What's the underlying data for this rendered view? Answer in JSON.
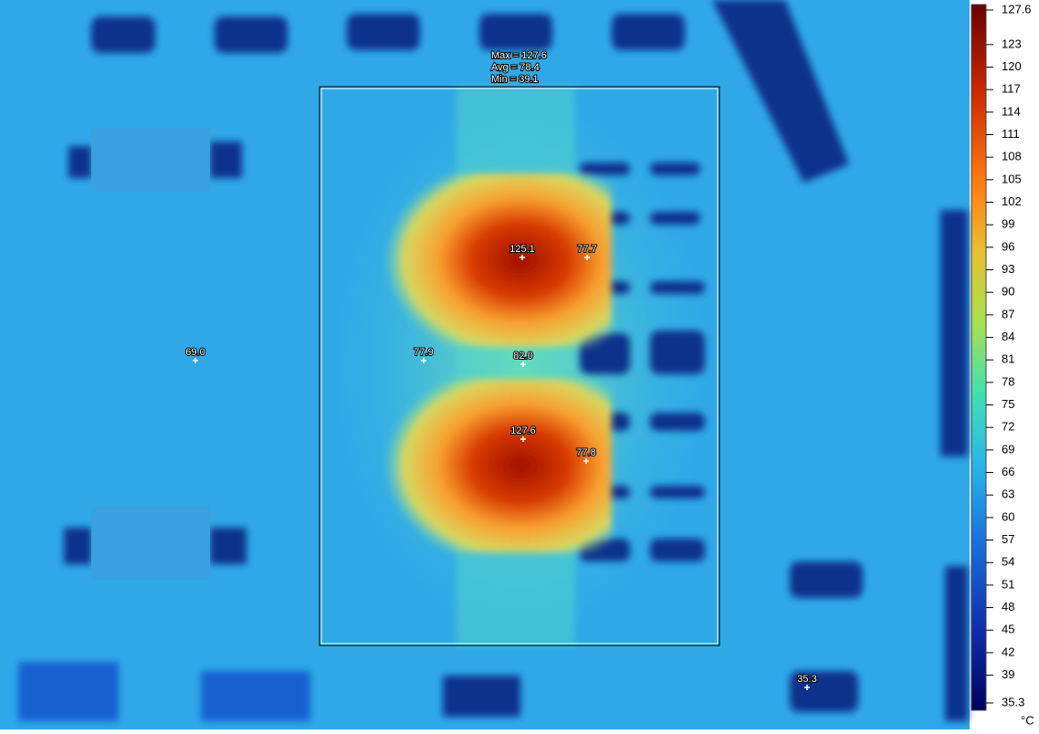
{
  "image": {
    "box_stats": [
      "Max = 127.6",
      "Avg = 78.4",
      "Min = 39.1"
    ],
    "spots": [
      "125.1",
      "77.7",
      "69.0",
      "77.9",
      "82.0",
      "127.6",
      "77.8",
      "35.3"
    ],
    "colorbar": {
      "ticks": [
        127.6,
        123,
        120,
        117,
        114,
        111,
        108,
        105,
        102,
        99,
        96,
        93,
        90,
        87,
        84,
        81,
        78,
        75,
        72,
        69,
        66,
        63,
        60,
        57,
        54,
        51,
        48,
        45,
        42,
        39,
        35.3
      ],
      "unit": "°C"
    }
  }
}
